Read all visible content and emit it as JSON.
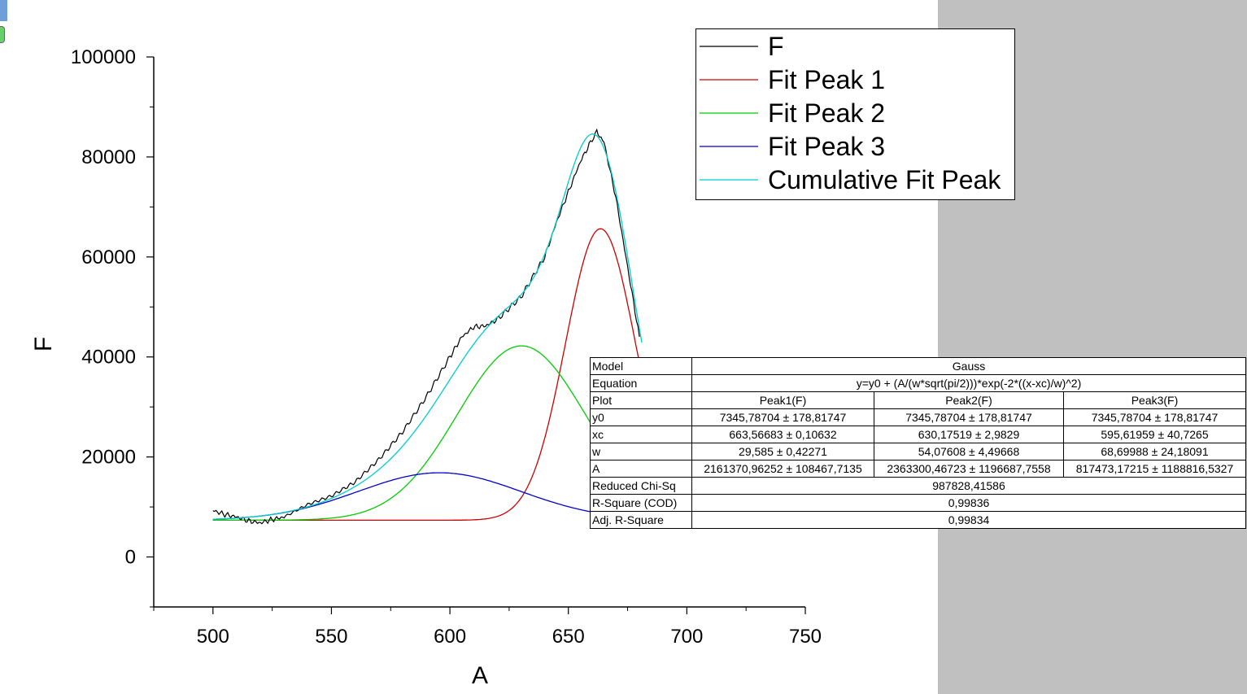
{
  "chart_data": {
    "type": "line",
    "xlabel": "A",
    "ylabel": "F",
    "xlim": [
      475,
      750
    ],
    "ylim": [
      -10000,
      100000
    ],
    "x_ticks": [
      500,
      550,
      600,
      650,
      700,
      750
    ],
    "y_ticks": [
      0,
      20000,
      40000,
      60000,
      80000,
      100000
    ],
    "legend_position": "top-right",
    "series": [
      {
        "name": "F",
        "color": "#000000",
        "x": [
          500,
          505,
          510,
          515,
          520,
          525,
          530,
          540,
          550,
          560,
          570,
          580,
          590,
          600,
          605,
          610,
          615,
          620,
          630,
          640,
          645,
          650,
          655,
          660,
          662,
          665,
          670,
          675,
          680
        ],
        "y": [
          9300,
          8500,
          8000,
          7200,
          6800,
          7500,
          8000,
          10500,
          12200,
          15000,
          19500,
          25000,
          32000,
          40000,
          44000,
          46000,
          46200,
          47500,
          52000,
          60000,
          67000,
          73000,
          79000,
          83500,
          85000,
          83000,
          72000,
          58000,
          44000
        ]
      },
      {
        "name": "Fit Peak 1",
        "color": "#cc0000"
      },
      {
        "name": "Fit Peak 2",
        "color": "#00cc00"
      },
      {
        "name": "Fit Peak 3",
        "color": "#0000cc"
      },
      {
        "name": "Cumulative Fit Peak",
        "color": "#00cccc"
      }
    ],
    "fit": {
      "y0": 7345.78704,
      "peaks": [
        {
          "xc": 663.56683,
          "w": 29.585,
          "A": 2161370.96252
        },
        {
          "xc": 630.17519,
          "w": 54.07608,
          "A": 2363300.46723
        },
        {
          "xc": 595.61959,
          "w": 68.69988,
          "A": 817473.17215
        }
      ],
      "x_range": [
        500,
        681
      ]
    }
  },
  "table": {
    "model_label": "Model",
    "model_value": "Gauss",
    "equation_label": "Equation",
    "equation_value": "y=y0 + (A/(w*sqrt(pi/2)))*exp(-2*((x-xc)/w)^2)",
    "plot_label": "Plot",
    "plot_cols": [
      "Peak1(F)",
      "Peak2(F)",
      "Peak3(F)"
    ],
    "rows": [
      {
        "label": "y0",
        "values": [
          "7345,78704 ± 178,81747",
          "7345,78704 ± 178,81747",
          "7345,78704 ± 178,81747"
        ]
      },
      {
        "label": "xc",
        "values": [
          "663,56683 ± 0,10632",
          "630,17519 ± 2,9829",
          "595,61959 ± 40,7265"
        ]
      },
      {
        "label": "w",
        "values": [
          "29,585 ± 0,42271",
          "54,07608 ± 4,49668",
          "68,69988 ± 24,18091"
        ]
      },
      {
        "label": "A",
        "values": [
          "2161370,96252 ± 108467,7135",
          "2363300,46723 ± 1196687,7558",
          "817473,17215 ± 1188816,5327"
        ]
      }
    ],
    "chi_label": "Reduced Chi-Sq",
    "chi_value": "987828,41586",
    "r2_label": "R-Square (COD)",
    "r2_value": "0,99836",
    "adj_label": "Adj. R-Square",
    "adj_value": "0,99834"
  }
}
